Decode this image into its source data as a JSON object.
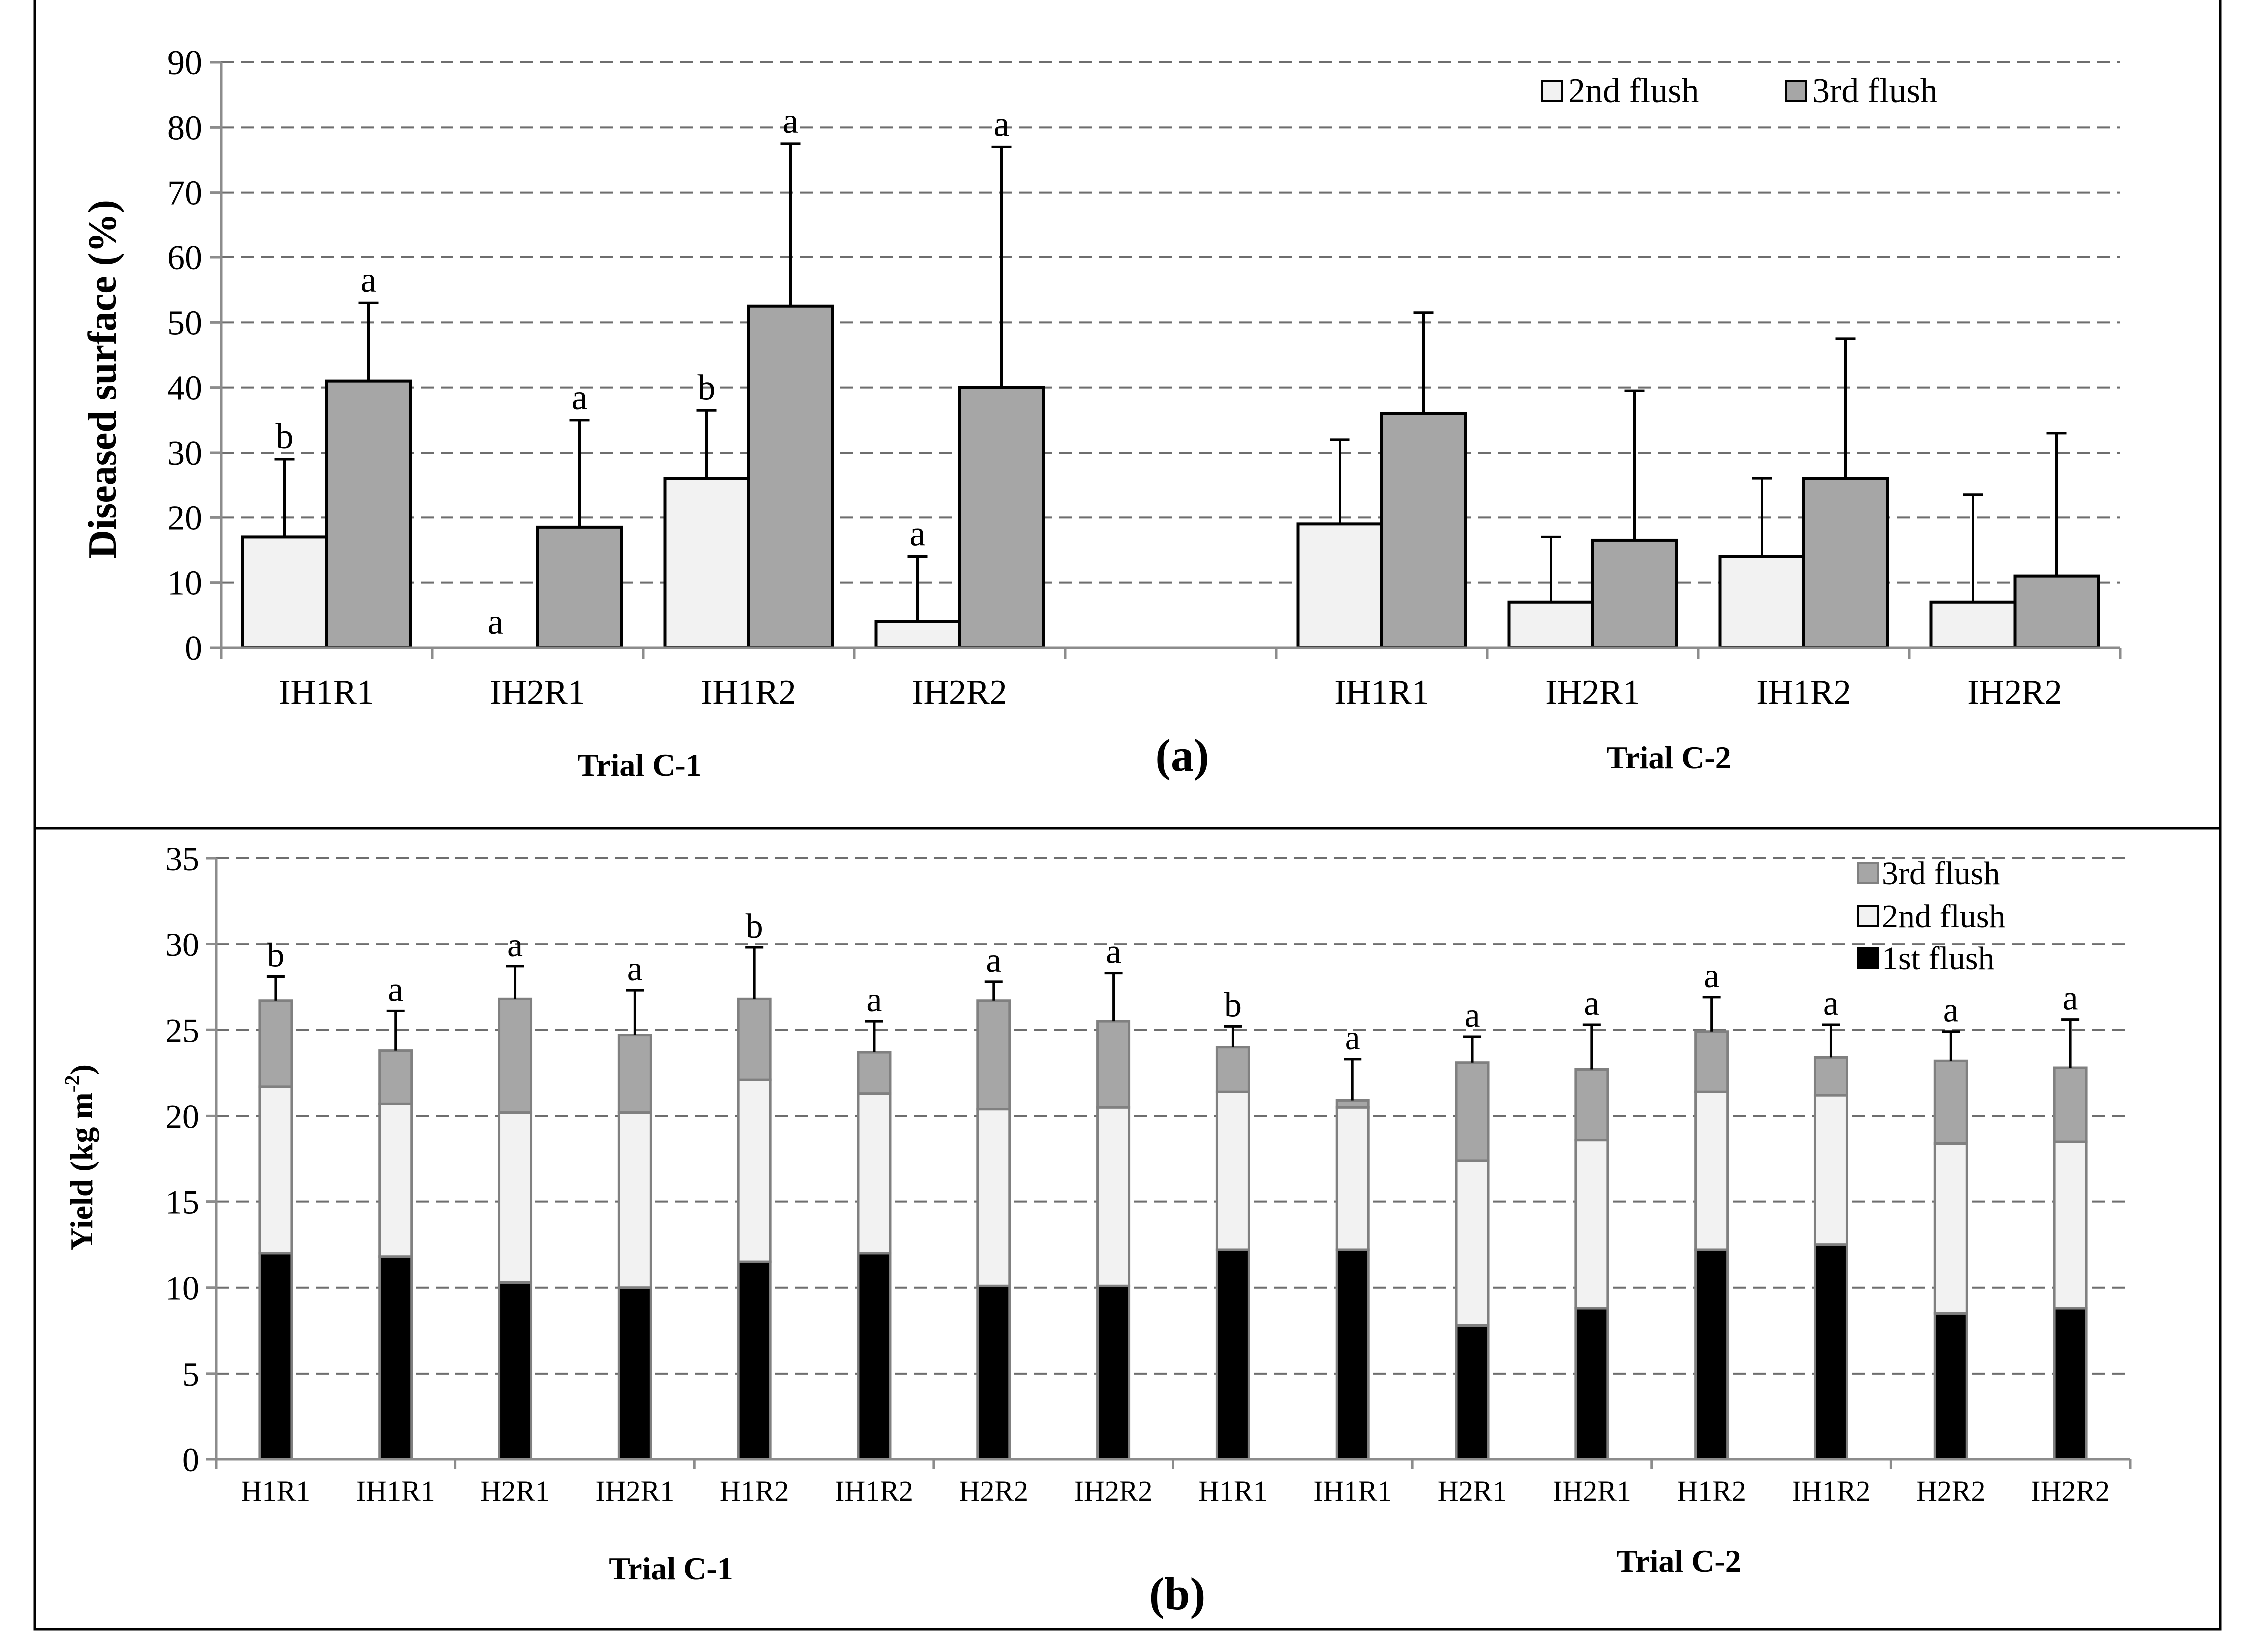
{
  "chart_data": [
    {
      "panel_label": "(a)",
      "type": "bar",
      "ylabel": "Diseased surface (%)",
      "ylim": [
        0,
        90
      ],
      "yticks": [
        "0",
        "10",
        "20",
        "30",
        "40",
        "50",
        "60",
        "70",
        "80",
        "90"
      ],
      "grid": true,
      "legend_position": "top-right",
      "colors": {
        "2nd flush": "#f2f2f2",
        "3rd flush": "#a6a6a6"
      },
      "series_names": [
        "2nd flush",
        "3rd flush"
      ],
      "groups": [
        {
          "trial": "Trial C-1",
          "categories": [
            {
              "label": "IH1R1",
              "values": [
                17,
                41
              ],
              "errors": [
                12,
                12
              ],
              "letters": [
                "b",
                "a"
              ]
            },
            {
              "label": "IH2R1",
              "values": [
                0,
                18.5
              ],
              "errors": [
                0,
                16.5
              ],
              "letters": [
                "a",
                "a"
              ]
            },
            {
              "label": "IH1R2",
              "values": [
                26,
                52.5
              ],
              "errors": [
                10.5,
                25
              ],
              "letters": [
                "b",
                "a"
              ]
            },
            {
              "label": "IH2R2",
              "values": [
                4,
                40
              ],
              "errors": [
                10,
                37
              ],
              "letters": [
                "a",
                "a"
              ]
            }
          ]
        },
        {
          "trial": "Trial C-2",
          "categories": [
            {
              "label": "IH1R1",
              "values": [
                19,
                36
              ],
              "errors": [
                13,
                15.5
              ],
              "letters": [
                "",
                ""
              ]
            },
            {
              "label": "IH2R1",
              "values": [
                7,
                16.5
              ],
              "errors": [
                10,
                23
              ],
              "letters": [
                "",
                ""
              ]
            },
            {
              "label": "IH1R2",
              "values": [
                14,
                26
              ],
              "errors": [
                12,
                21.5
              ],
              "letters": [
                "",
                ""
              ]
            },
            {
              "label": "IH2R2",
              "values": [
                7,
                11
              ],
              "errors": [
                16.5,
                22
              ],
              "letters": [
                "",
                ""
              ]
            }
          ]
        }
      ]
    },
    {
      "panel_label": "(b)",
      "type": "bar",
      "stacked": true,
      "ylabel": "Yield (kg m",
      "ylabel_superscript": "-2",
      "ylabel_close": ")",
      "ylim": [
        0,
        35
      ],
      "yticks": [
        "0",
        "5",
        "10",
        "15",
        "20",
        "25",
        "30",
        "35"
      ],
      "grid": true,
      "legend_position": "top-right",
      "colors": {
        "1st flush": "#000000",
        "2nd flush": "#f2f2f2",
        "3rd flush": "#a6a6a6"
      },
      "series_names": [
        "1st flush",
        "2nd flush",
        "3rd flush"
      ],
      "legend_order": [
        "3rd flush",
        "2nd flush",
        "1st flush"
      ],
      "groups": [
        {
          "trial": "Trial C-1",
          "bars": [
            {
              "label": "H1R1",
              "values": [
                12,
                9.7,
                5
              ],
              "error": 1.4,
              "letter": "b"
            },
            {
              "label": "IH1R1",
              "values": [
                11.8,
                8.9,
                3.1
              ],
              "error": 2.3,
              "letter": "a"
            },
            {
              "label": "H2R1",
              "values": [
                10.3,
                9.9,
                6.6
              ],
              "error": 1.9,
              "letter": "a"
            },
            {
              "label": "IH2R1",
              "values": [
                10,
                10.2,
                4.5
              ],
              "error": 2.6,
              "letter": "a"
            },
            {
              "label": "H1R2",
              "values": [
                11.5,
                10.6,
                4.7
              ],
              "error": 3,
              "letter": "b"
            },
            {
              "label": "IH1R2",
              "values": [
                12,
                9.3,
                2.4
              ],
              "error": 1.8,
              "letter": "a"
            },
            {
              "label": "H2R2",
              "values": [
                10.1,
                10.3,
                6.3
              ],
              "error": 1.1,
              "letter": "a"
            },
            {
              "label": "IH2R2",
              "values": [
                10.1,
                10.4,
                5
              ],
              "error": 2.8,
              "letter": "a"
            }
          ]
        },
        {
          "trial": "Trial C-2",
          "bars": [
            {
              "label": "H1R1",
              "values": [
                12.2,
                9.2,
                2.6
              ],
              "error": 1.2,
              "letter": "b"
            },
            {
              "label": "IH1R1",
              "values": [
                12.2,
                8.3,
                0.4
              ],
              "error": 2.4,
              "letter": "a"
            },
            {
              "label": "H2R1",
              "values": [
                7.8,
                9.6,
                5.7
              ],
              "error": 1.5,
              "letter": "a"
            },
            {
              "label": "IH2R1",
              "values": [
                8.8,
                9.8,
                4.1
              ],
              "error": 2.6,
              "letter": "a"
            },
            {
              "label": "H1R2",
              "values": [
                12.2,
                9.2,
                3.5
              ],
              "error": 2,
              "letter": "a"
            },
            {
              "label": "IH1R2",
              "values": [
                12.5,
                8.7,
                2.2
              ],
              "error": 1.9,
              "letter": "a"
            },
            {
              "label": "H2R2",
              "values": [
                8.5,
                9.9,
                4.8
              ],
              "error": 1.7,
              "letter": "a"
            },
            {
              "label": "IH2R2",
              "values": [
                8.8,
                9.7,
                4.3
              ],
              "error": 2.8,
              "letter": "a"
            }
          ]
        }
      ]
    }
  ]
}
